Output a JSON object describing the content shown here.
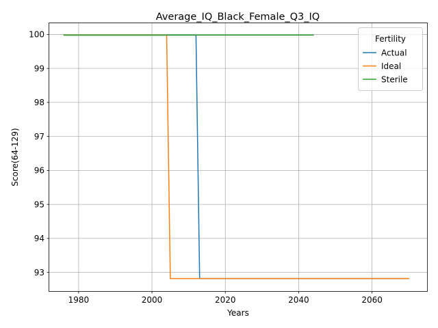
{
  "chart_data": {
    "type": "line",
    "title": "Average_IQ_Black_Female_Q3_IQ",
    "xlabel": "Years",
    "ylabel": "Score(64-129)",
    "xlim": [
      1972,
      2075
    ],
    "ylim": [
      92.45,
      100.33
    ],
    "xticks": [
      1980,
      2000,
      2020,
      2040,
      2060
    ],
    "yticks": [
      93,
      94,
      95,
      96,
      97,
      98,
      99,
      100
    ],
    "grid": true,
    "legend": {
      "title": "Fertility",
      "placement": "top-right",
      "entries": [
        "Actual",
        "Ideal",
        "Sterile"
      ]
    },
    "series": [
      {
        "name": "Actual",
        "color": "#1f77b4",
        "x": [
          1976,
          2012,
          2013,
          2070
        ],
        "y": [
          99.98,
          99.98,
          92.82,
          92.82
        ]
      },
      {
        "name": "Ideal",
        "color": "#ff7f0e",
        "x": [
          1976,
          2004,
          2005,
          2070
        ],
        "y": [
          99.98,
          99.98,
          92.82,
          92.82
        ]
      },
      {
        "name": "Sterile",
        "color": "#2ca02c",
        "x": [
          1976,
          2044
        ],
        "y": [
          99.98,
          99.98
        ]
      }
    ]
  }
}
